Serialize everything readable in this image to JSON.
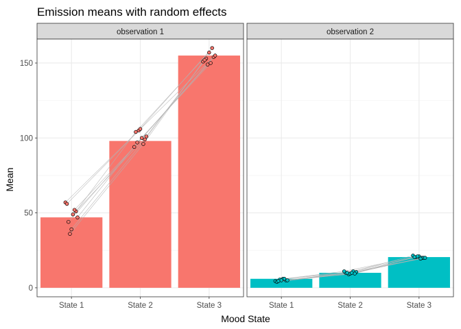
{
  "chart_data": {
    "type": "bar",
    "title": "Emission means with random effects",
    "xlabel": "Mood State",
    "ylabel": "Mean",
    "categories": [
      "State 1",
      "State 2",
      "State 3"
    ],
    "ylim": [
      -6,
      166
    ],
    "yticks": [
      0,
      50,
      100,
      150
    ],
    "grid": true,
    "legend": "none",
    "panels": [
      {
        "strip": "observation 1",
        "color": "#F8766D",
        "values": [
          47,
          98,
          155
        ],
        "subjects": [
          [
            57,
            105,
            160
          ],
          [
            51,
            104,
            157
          ],
          [
            49,
            101,
            153
          ],
          [
            36,
            96,
            151
          ],
          [
            56,
            106,
            154
          ],
          [
            47,
            97,
            150
          ],
          [
            52,
            94,
            149
          ],
          [
            39,
            99,
            152
          ],
          [
            44,
            100,
            155
          ]
        ]
      },
      {
        "strip": "observation 2",
        "color": "#00BFC4",
        "values": [
          6,
          10,
          20.5
        ],
        "subjects": [
          [
            4.5,
            9,
            20
          ],
          [
            5,
            10,
            21
          ],
          [
            6,
            10.5,
            20.5
          ],
          [
            5.5,
            11,
            21.5
          ],
          [
            4,
            9.5,
            20
          ],
          [
            5,
            10,
            19.5
          ],
          [
            6,
            11,
            21
          ],
          [
            5,
            9.5,
            20.5
          ],
          [
            4.5,
            10,
            20
          ]
        ]
      }
    ]
  }
}
